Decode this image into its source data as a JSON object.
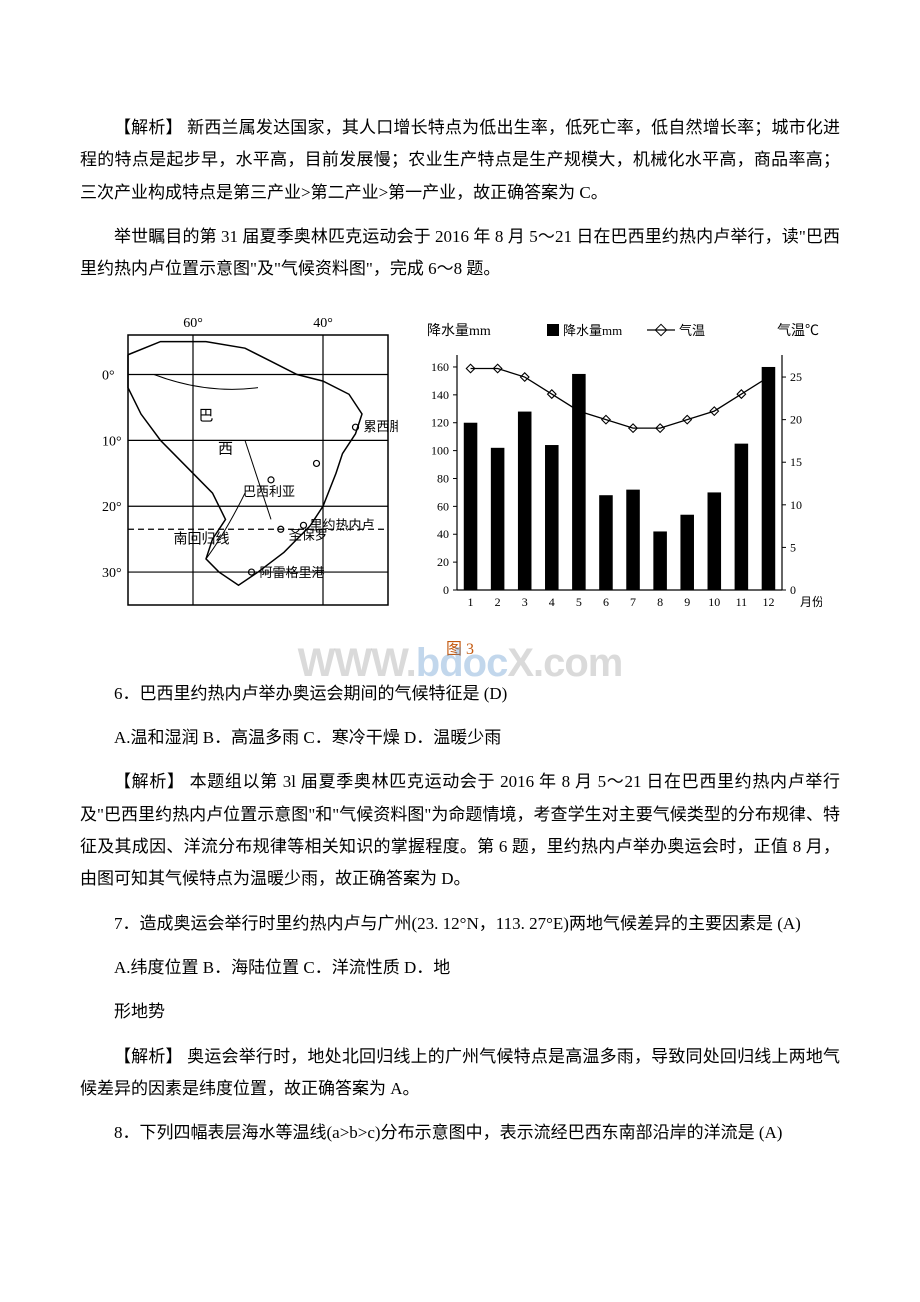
{
  "explain1": "【解析】 新西兰属发达国家，其人口增长特点为低出生率，低死亡率，低自然增长率；城市化进程的特点是起步早，水平高，目前发展慢；农业生产特点是生产规模大，机械化水平高，商品率高；三次产业构成特点是第三产业>第二产业>第一产业，故正确答案为 C。",
  "intro2": "举世瞩目的第 31 届夏季奥林匹克运动会于 2016 年 8 月 5～21 日在巴西里约热内卢举行，读\"巴西里约热内卢位置示意图\"及\"气候资料图\"，完成 6～8 题。",
  "map": {
    "lons": {
      "l60": "60°",
      "l40": "40°"
    },
    "lats": {
      "l0": "0°",
      "l10": "10°",
      "l20": "20°",
      "l30": "30°"
    },
    "labels": {
      "ba": "巴",
      "xi": "西",
      "leixife": "累西腓",
      "baxiliya": "巴西利亚",
      "tropic": "南回归线",
      "rio": "里约热内卢",
      "saopaulo": "圣保罗",
      "alegre": "阿雷格里港"
    },
    "stroke": "#000000",
    "linew": 1.2
  },
  "chart": {
    "type": "bar_with_line",
    "ylabel_left": "降水量mm",
    "ylabel_right": "气温℃",
    "xlabel": "月份",
    "legend_bar": "降水量mm",
    "legend_line": "气温",
    "months": [
      "1",
      "2",
      "3",
      "4",
      "5",
      "6",
      "7",
      "8",
      "9",
      "10",
      "11",
      "12"
    ],
    "precip": [
      120,
      102,
      128,
      104,
      155,
      68,
      72,
      42,
      54,
      70,
      105,
      160
    ],
    "temp": [
      26,
      26,
      25,
      23,
      21,
      20,
      19,
      19,
      20,
      21,
      23,
      25
    ],
    "y_left_ticks": [
      0,
      20,
      40,
      60,
      80,
      100,
      120,
      140,
      160
    ],
    "y_right_ticks": [
      0,
      5,
      10,
      15,
      20,
      25
    ],
    "bar_color": "#000000",
    "line_color": "#000000",
    "marker_color": "#000000",
    "grid_color": "#000000",
    "background": "#ffffff",
    "tick_fontsize": 12,
    "label_fontsize": 14,
    "bar_width": 0.5,
    "ylim_left": [
      0,
      165
    ],
    "ylim_right": [
      0,
      27
    ]
  },
  "caption_fig3": "图 3",
  "watermark": {
    "part1": "WWW.",
    "part2": "bdoc",
    "part3": "X.com"
  },
  "q6": "6．巴西里约热内卢举办奥运会期间的气候特征是 (D)",
  "q6opts": "A.温和湿润 B．高温多雨 C．寒冷干燥 D．温暖少雨",
  "explain6": "【解析】 本题组以第 3l 届夏季奥林匹克运动会于 2016 年 8 月 5～21 日在巴西里约热内卢举行及\"巴西里约热内卢位置示意图\"和\"气候资料图\"为命题情境，考查学生对主要气候类型的分布规律、特征及其成因、洋流分布规律等相关知识的掌握程度。第 6 题，里约热内卢举办奥运会时，正值 8 月，由图可知其气候特点为温暖少雨，故正确答案为 D。",
  "q7a": "7．造成奥运会举行时里约热内卢与广州(23. 12°N，113. 27°E)两地气候差异的主要因素是 (A)",
  "q7opts1": "A.纬度位置 B．海陆位置 C．洋流性质 D．地",
  "q7opts2": "形地势",
  "explain7": "【解析】 奥运会举行时，地处北回归线上的广州气候特点是高温多雨，导致同处回归线上两地气候差异的因素是纬度位置，故正确答案为 A。",
  "q8": "8．下列四幅表层海水等温线(a>b>c)分布示意图中，表示流经巴西东南部沿岸的洋流是 (A)"
}
